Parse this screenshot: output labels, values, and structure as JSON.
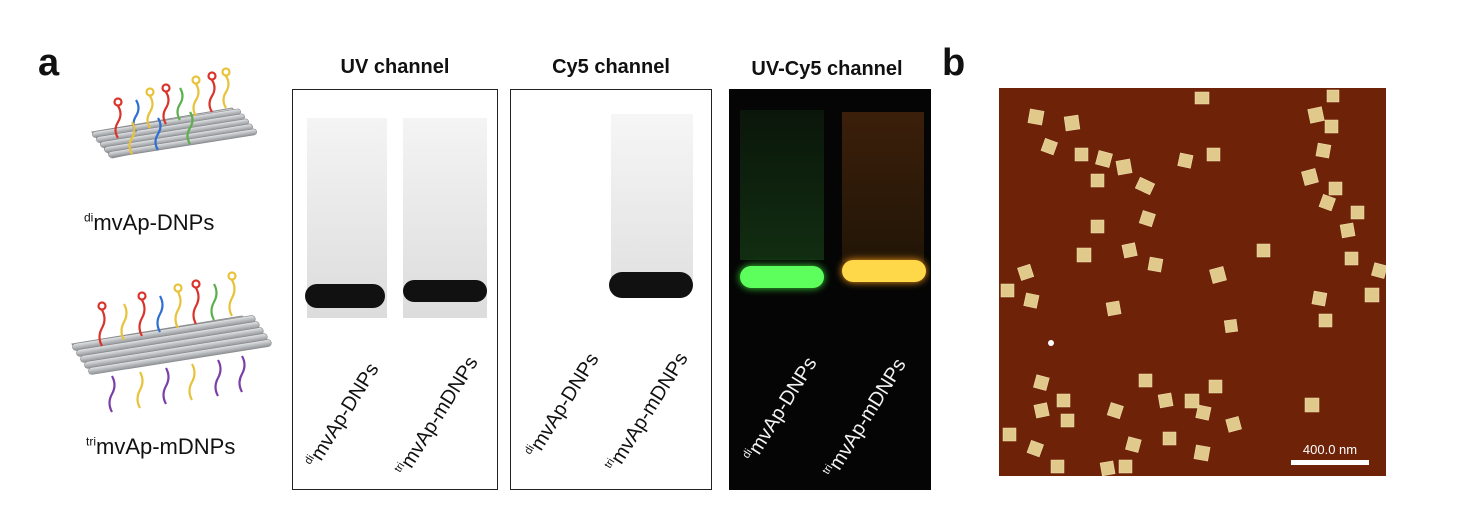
{
  "panels": {
    "a_letter": "a",
    "b_letter": "b"
  },
  "nanoplatforms": [
    {
      "sup": "di",
      "name": "mvAp-DNPs"
    },
    {
      "sup": "tri",
      "name": "mvAp-mDNPs"
    }
  ],
  "gels": [
    {
      "title": "UV channel",
      "lanes": [
        {
          "sup": "di",
          "name": "mvAp-DNPs"
        },
        {
          "sup": "tri",
          "name": "mvAp-mDNPs"
        }
      ]
    },
    {
      "title": "Cy5 channel",
      "lanes": [
        {
          "sup": "di",
          "name": "mvAp-DNPs"
        },
        {
          "sup": "tri",
          "name": "mvAp-mDNPs"
        }
      ]
    },
    {
      "title": "UV-Cy5 channel",
      "lanes": [
        {
          "sup": "di",
          "name": "mvAp-DNPs"
        },
        {
          "sup": "tri",
          "name": "mvAp-mDNPs"
        }
      ]
    }
  ],
  "afm": {
    "scale_bar_label": "400.0 nm",
    "background_color": "#6e2208",
    "particle_color": "#e0c98a"
  },
  "colors": {
    "band_dark": "#111111",
    "band_green": "#5cff5c",
    "band_yellow": "#ffd84a",
    "strand_red": "#d9342b",
    "strand_blue": "#2f6fd1",
    "strand_yellow": "#e8c23a",
    "strand_green": "#5bb04d",
    "strand_purple": "#7b3fa8",
    "tube_gray": "#b9bcc0"
  }
}
